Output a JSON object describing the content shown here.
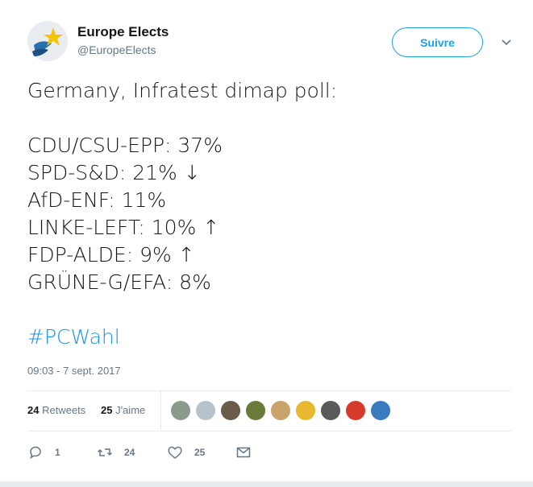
{
  "author": {
    "name": "Europe Elects",
    "handle": "@EuropeElects",
    "avatar_icon": "europe-elects-logo-icon"
  },
  "follow_button": {
    "label": "Suivre"
  },
  "tweet": {
    "intro": "Germany, Infratest dimap poll:",
    "lines": [
      "CDU/CSU-EPP: 37%",
      "SPD-S&D: 21% ↓",
      "AfD-ENF: 11%",
      "LINKE-LEFT: 10% ↑",
      "FDP-ALDE: 9% ↑",
      "GRÜNE-G/EFA: 8%"
    ],
    "hashtag": "#PCWahl"
  },
  "timestamp": "09:03 - 7 sept. 2017",
  "stats": {
    "retweets_count": "24",
    "retweets_label": "Retweets",
    "likes_count": "25",
    "likes_label": "J'aime"
  },
  "likers_avatar_colors": [
    "#8a9a8c",
    "#b8c2cc",
    "#6b5b4a",
    "#6a7a3a",
    "#c9a36a",
    "#e8b830",
    "#5a5a5a",
    "#d63a2a",
    "#3a7bbf"
  ],
  "actions": {
    "reply_count": "1",
    "retweet_count": "24",
    "like_count": "25"
  },
  "colors": {
    "accent": "#1da1f2",
    "hashtag": "#1b95e0",
    "muted": "#657786"
  }
}
